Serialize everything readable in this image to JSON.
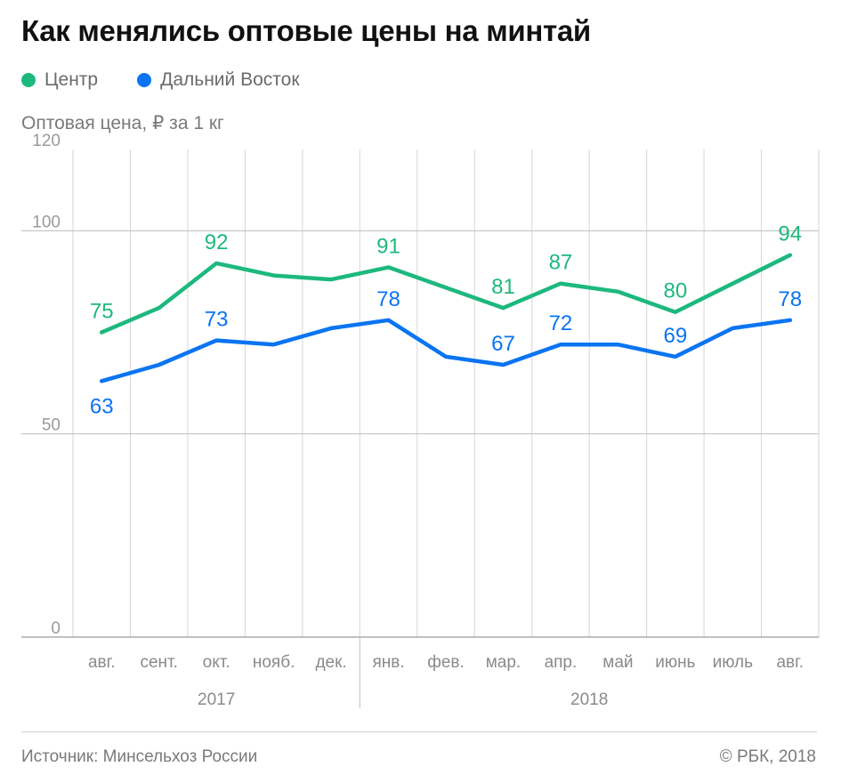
{
  "title": "Как менялись оптовые цены на минтай",
  "y_axis_caption": "Оптовая цена, ₽ за 1 кг",
  "source": "Источник: Минсельхоз России",
  "copyright": "© РБК, 2018",
  "colors": {
    "centre": "#1db87e",
    "far_east": "#0a74f2",
    "grid": "#d6d6d6",
    "axis_text": "#8a8a8a"
  },
  "chart_data": {
    "type": "line",
    "title": "Как менялись оптовые цены на минтай",
    "ylabel": "Оптовая цена, ₽ за 1 кг",
    "xlabel": "",
    "ylim": [
      0,
      120
    ],
    "yticks": [
      0,
      50,
      100,
      120
    ],
    "categories": [
      "авг.",
      "сент.",
      "окт.",
      "нояб.",
      "дек.",
      "янв.",
      "фев.",
      "мар.",
      "апр.",
      "май",
      "июнь",
      "июль",
      "авг."
    ],
    "year_groups": [
      {
        "label": "2017",
        "start": 0,
        "end": 4
      },
      {
        "label": "2018",
        "start": 5,
        "end": 12
      }
    ],
    "legend_position": "top-left",
    "grid": true,
    "series": [
      {
        "name": "Центр",
        "color": "#1db87e",
        "values": [
          75,
          81,
          92,
          89,
          88,
          91,
          86,
          81,
          87,
          85,
          80,
          87,
          94
        ],
        "labels": [
          "75",
          "",
          "92",
          "",
          "",
          "91",
          "",
          "81",
          "87",
          "",
          "80",
          "",
          "94"
        ]
      },
      {
        "name": "Дальний Восток",
        "color": "#0a74f2",
        "values": [
          63,
          67,
          73,
          72,
          76,
          78,
          69,
          67,
          72,
          72,
          69,
          76,
          78
        ],
        "labels": [
          "63",
          "",
          "73",
          "",
          "",
          "78",
          "",
          "67",
          "72",
          "",
          "69",
          "",
          "78"
        ]
      }
    ]
  }
}
